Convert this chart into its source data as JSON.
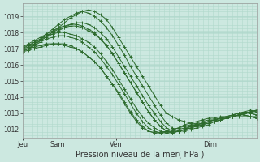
{
  "background_color": "#cce8e0",
  "plot_bg_color": "#cce8e0",
  "line_color": "#2d6b2d",
  "grid_major_color": "#b0d8cc",
  "grid_minor_color": "#b0d8cc",
  "xlabel": "Pression niveau de la mer( hPa )",
  "ylim": [
    1011.5,
    1019.8
  ],
  "yticks": [
    1012,
    1013,
    1014,
    1015,
    1016,
    1017,
    1018,
    1019
  ],
  "xtick_labels": [
    "Jeu",
    "Sam",
    "Ven",
    "Dim"
  ],
  "xtick_positions": [
    0,
    36,
    96,
    192
  ],
  "total_steps": 240,
  "series": [
    [
      1016.9,
      1017.0,
      1017.2,
      1017.5,
      1017.8,
      1018.0,
      1018.3,
      1018.6,
      1018.9,
      1019.1,
      1019.3,
      1019.4,
      1019.3,
      1019.1,
      1018.8,
      1018.3,
      1017.7,
      1017.1,
      1016.5,
      1015.9,
      1015.3,
      1014.7,
      1014.1,
      1013.5,
      1013.0,
      1012.8,
      1012.6,
      1012.5,
      1012.4,
      1012.3,
      1012.3,
      1012.4,
      1012.5,
      1012.6,
      1012.7,
      1012.8,
      1012.9,
      1013.0,
      1013.1,
      1013.2
    ],
    [
      1016.8,
      1017.0,
      1017.3,
      1017.6,
      1017.9,
      1018.2,
      1018.5,
      1018.8,
      1019.0,
      1019.2,
      1019.3,
      1019.2,
      1019.0,
      1018.7,
      1018.3,
      1017.8,
      1017.2,
      1016.6,
      1015.9,
      1015.3,
      1014.7,
      1014.1,
      1013.5,
      1012.9,
      1012.4,
      1012.1,
      1011.9,
      1011.9,
      1012.0,
      1012.1,
      1012.2,
      1012.3,
      1012.5,
      1012.6,
      1012.7,
      1012.8,
      1012.9,
      1013.0,
      1013.1,
      1013.2
    ],
    [
      1017.0,
      1017.1,
      1017.3,
      1017.5,
      1017.7,
      1017.9,
      1018.1,
      1018.3,
      1018.5,
      1018.6,
      1018.6,
      1018.5,
      1018.3,
      1018.0,
      1017.6,
      1017.1,
      1016.5,
      1015.9,
      1015.3,
      1014.7,
      1014.1,
      1013.5,
      1013.0,
      1012.5,
      1012.1,
      1011.9,
      1011.9,
      1012.0,
      1012.1,
      1012.2,
      1012.3,
      1012.5,
      1012.6,
      1012.7,
      1012.8,
      1012.9,
      1013.0,
      1013.1,
      1013.2,
      1013.1
    ],
    [
      1017.1,
      1017.2,
      1017.4,
      1017.6,
      1017.8,
      1018.0,
      1018.2,
      1018.3,
      1018.4,
      1018.4,
      1018.3,
      1018.1,
      1017.9,
      1017.6,
      1017.2,
      1016.7,
      1016.1,
      1015.5,
      1014.9,
      1014.3,
      1013.7,
      1013.1,
      1012.6,
      1012.2,
      1011.9,
      1011.8,
      1011.9,
      1012.0,
      1012.2,
      1012.3,
      1012.4,
      1012.5,
      1012.6,
      1012.7,
      1012.8,
      1012.9,
      1013.0,
      1013.1,
      1013.0,
      1012.9
    ],
    [
      1017.0,
      1017.2,
      1017.4,
      1017.6,
      1017.8,
      1017.9,
      1018.0,
      1018.0,
      1017.9,
      1017.8,
      1017.6,
      1017.4,
      1017.1,
      1016.7,
      1016.2,
      1015.7,
      1015.1,
      1014.5,
      1013.9,
      1013.3,
      1012.8,
      1012.4,
      1012.1,
      1011.9,
      1011.8,
      1011.8,
      1011.9,
      1012.0,
      1012.2,
      1012.3,
      1012.4,
      1012.5,
      1012.6,
      1012.7,
      1012.8,
      1012.9,
      1013.0,
      1012.9,
      1012.8,
      1012.7
    ],
    [
      1016.9,
      1017.0,
      1017.2,
      1017.4,
      1017.6,
      1017.7,
      1017.8,
      1017.8,
      1017.7,
      1017.6,
      1017.4,
      1017.1,
      1016.8,
      1016.4,
      1015.9,
      1015.4,
      1014.8,
      1014.2,
      1013.6,
      1013.0,
      1012.5,
      1012.1,
      1011.9,
      1011.8,
      1011.8,
      1011.9,
      1012.0,
      1012.1,
      1012.2,
      1012.3,
      1012.4,
      1012.5,
      1012.6,
      1012.7,
      1012.7,
      1012.8,
      1012.9,
      1012.9,
      1012.8,
      1012.7
    ],
    [
      1016.8,
      1016.9,
      1017.0,
      1017.1,
      1017.2,
      1017.3,
      1017.3,
      1017.3,
      1017.2,
      1017.0,
      1016.8,
      1016.5,
      1016.2,
      1015.8,
      1015.3,
      1014.8,
      1014.2,
      1013.6,
      1013.0,
      1012.5,
      1012.1,
      1011.9,
      1011.8,
      1011.8,
      1011.9,
      1012.0,
      1012.1,
      1012.2,
      1012.3,
      1012.4,
      1012.5,
      1012.6,
      1012.6,
      1012.7,
      1012.7,
      1012.8,
      1012.8,
      1012.8,
      1012.8,
      1012.8
    ],
    [
      1017.1,
      1017.3,
      1017.5,
      1017.7,
      1017.9,
      1018.1,
      1018.3,
      1018.4,
      1018.5,
      1018.5,
      1018.4,
      1018.2,
      1018.0,
      1017.6,
      1017.2,
      1016.7,
      1016.1,
      1015.5,
      1014.9,
      1014.3,
      1013.7,
      1013.1,
      1012.6,
      1012.2,
      1011.9,
      1011.8,
      1011.9,
      1012.0,
      1012.1,
      1012.2,
      1012.3,
      1012.4,
      1012.5,
      1012.6,
      1012.7,
      1012.8,
      1012.9,
      1013.0,
      1013.0,
      1012.9
    ],
    [
      1017.0,
      1017.0,
      1017.1,
      1017.2,
      1017.3,
      1017.3,
      1017.3,
      1017.2,
      1017.1,
      1017.0,
      1016.8,
      1016.5,
      1016.2,
      1015.8,
      1015.3,
      1014.8,
      1014.3,
      1013.7,
      1013.1,
      1012.6,
      1012.2,
      1011.9,
      1011.8,
      1011.8,
      1011.9,
      1012.0,
      1012.1,
      1012.3,
      1012.4,
      1012.5,
      1012.6,
      1012.7,
      1012.7,
      1012.8,
      1012.8,
      1012.8,
      1012.9,
      1013.0,
      1013.1,
      1013.1
    ]
  ],
  "n_points": 40
}
